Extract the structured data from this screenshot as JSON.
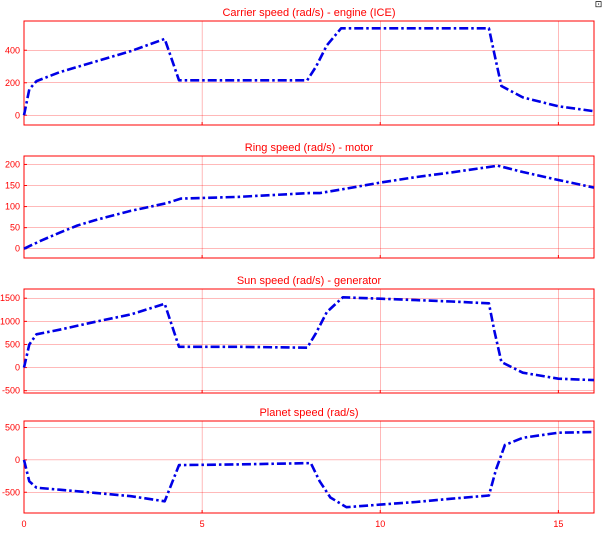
{
  "toolbar": {
    "export_icon": "export-icon"
  },
  "colors": {
    "axes": "#ff0000",
    "line": "#0000e6",
    "background": "#ffffff"
  },
  "chart_data": [
    {
      "type": "line",
      "title": "Carrier speed (rad/s) - engine (ICE)",
      "xlabel": "",
      "ylabel": "",
      "xlim": [
        0,
        16
      ],
      "ylim": [
        -60,
        580
      ],
      "yticks": [
        0,
        200,
        400
      ],
      "xticks": [],
      "grid": true,
      "x": [
        0,
        0.15,
        0.35,
        1,
        2,
        3,
        3.95,
        4.35,
        6,
        7.95,
        8.2,
        8.5,
        8.9,
        10,
        11,
        12,
        13.05,
        13.2,
        13.4,
        14,
        15,
        16
      ],
      "y": [
        0,
        160,
        210,
        265,
        330,
        395,
        470,
        215,
        215,
        215,
        300,
        430,
        535,
        535,
        535,
        535,
        535,
        380,
        180,
        110,
        55,
        25
      ]
    },
    {
      "type": "line",
      "title": "Ring speed (rad/s) - motor",
      "xlabel": "",
      "ylabel": "",
      "xlim": [
        0,
        16
      ],
      "ylim": [
        -22,
        220
      ],
      "yticks": [
        0,
        50,
        100,
        150,
        200
      ],
      "xticks": [],
      "grid": true,
      "x": [
        0,
        0.5,
        1,
        1.5,
        2,
        3,
        4,
        4.4,
        6,
        8,
        8.3,
        9,
        10,
        11,
        12,
        13.3,
        14,
        15,
        16
      ],
      "y": [
        0,
        20,
        38,
        55,
        68,
        90,
        108,
        119,
        123,
        132,
        132,
        142,
        157,
        170,
        181,
        197,
        182,
        163,
        145
      ]
    },
    {
      "type": "line",
      "title": "Sun speed (rad/s) - generator",
      "xlabel": "",
      "ylabel": "",
      "xlim": [
        0,
        16
      ],
      "ylim": [
        -550,
        1700
      ],
      "yticks": [
        -500,
        0,
        500,
        1000,
        1500
      ],
      "xticks": [],
      "grid": true,
      "x": [
        0,
        0.15,
        0.35,
        1,
        2,
        3,
        3.95,
        4.35,
        6,
        7.95,
        8.2,
        8.5,
        8.95,
        10,
        11,
        12,
        13.05,
        13.2,
        13.4,
        14,
        15,
        16
      ],
      "y": [
        0,
        500,
        720,
        820,
        990,
        1150,
        1380,
        450,
        450,
        430,
        750,
        1200,
        1520,
        1490,
        1460,
        1430,
        1390,
        800,
        120,
        -110,
        -240,
        -270
      ]
    },
    {
      "type": "line",
      "title": "Planet speed (rad/s)",
      "xlabel": "",
      "ylabel": "",
      "xlim": [
        0,
        16
      ],
      "ylim": [
        -820,
        600
      ],
      "yticks": [
        -500,
        0,
        500
      ],
      "xticks": [
        0,
        5,
        10,
        15
      ],
      "grid": true,
      "x": [
        0,
        0.15,
        0.35,
        1,
        2,
        3,
        3.95,
        4.35,
        6,
        8.05,
        8.3,
        8.6,
        9.05,
        10,
        11,
        12,
        13.05,
        13.25,
        13.5,
        14,
        15,
        16
      ],
      "y": [
        0,
        -330,
        -430,
        -460,
        -510,
        -560,
        -640,
        -80,
        -70,
        -50,
        -330,
        -580,
        -730,
        -690,
        -650,
        -600,
        -550,
        -150,
        230,
        340,
        420,
        430
      ]
    }
  ]
}
